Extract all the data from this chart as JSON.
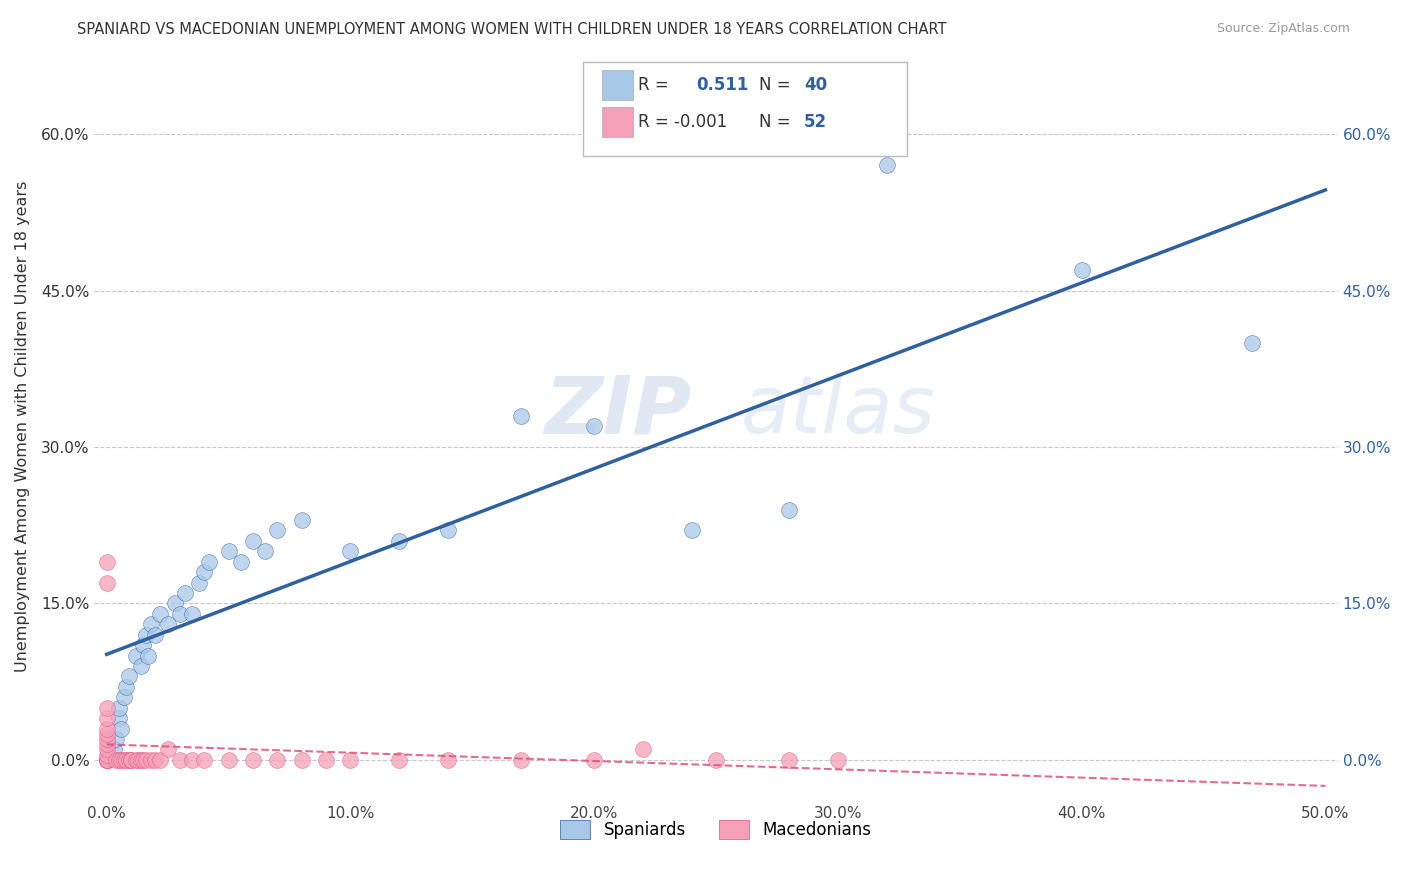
{
  "title": "SPANIARD VS MACEDONIAN UNEMPLOYMENT AMONG WOMEN WITH CHILDREN UNDER 18 YEARS CORRELATION CHART",
  "source": "Source: ZipAtlas.com",
  "ylabel": "Unemployment Among Women with Children Under 18 years",
  "xlim": [
    -0.005,
    0.505
  ],
  "ylim": [
    -0.04,
    0.68
  ],
  "xticks": [
    0.0,
    0.1,
    0.2,
    0.3,
    0.4,
    0.5
  ],
  "xticklabels": [
    "0.0%",
    "10.0%",
    "20.0%",
    "30.0%",
    "40.0%",
    "50.0%"
  ],
  "yticks": [
    0.0,
    0.15,
    0.3,
    0.45,
    0.6
  ],
  "yticklabels": [
    "0.0%",
    "15.0%",
    "30.0%",
    "45.0%",
    "60.0%"
  ],
  "grid_color": "#c8c8c8",
  "background_color": "#ffffff",
  "watermark_text": "ZIPatlas",
  "legend_label1": "Spaniards",
  "legend_label2": "Macedonians",
  "blue_color": "#a8c8e8",
  "pink_color": "#f4a0b8",
  "blue_line_color": "#3060a0",
  "pink_line_color": "#e05080",
  "tick_color_right": "#3060a0",
  "tick_color_left": "#333333",
  "spaniards_x": [
    0.003,
    0.004,
    0.005,
    0.005,
    0.006,
    0.007,
    0.008,
    0.009,
    0.012,
    0.014,
    0.015,
    0.016,
    0.017,
    0.018,
    0.02,
    0.022,
    0.025,
    0.028,
    0.03,
    0.032,
    0.035,
    0.038,
    0.04,
    0.042,
    0.05,
    0.055,
    0.06,
    0.065,
    0.07,
    0.08,
    0.1,
    0.12,
    0.14,
    0.17,
    0.2,
    0.24,
    0.28,
    0.32,
    0.4,
    0.47
  ],
  "spaniards_y": [
    0.01,
    0.02,
    0.04,
    0.05,
    0.03,
    0.06,
    0.07,
    0.08,
    0.1,
    0.09,
    0.11,
    0.12,
    0.1,
    0.13,
    0.12,
    0.14,
    0.13,
    0.15,
    0.14,
    0.16,
    0.14,
    0.17,
    0.18,
    0.19,
    0.2,
    0.19,
    0.21,
    0.2,
    0.22,
    0.23,
    0.2,
    0.21,
    0.22,
    0.33,
    0.32,
    0.22,
    0.24,
    0.57,
    0.47,
    0.4
  ],
  "macedonians_x": [
    0.0,
    0.0,
    0.0,
    0.0,
    0.0,
    0.0,
    0.0,
    0.0,
    0.0,
    0.0,
    0.0,
    0.0,
    0.0,
    0.0,
    0.0,
    0.0,
    0.0,
    0.0,
    0.004,
    0.005,
    0.006,
    0.007,
    0.008,
    0.009,
    0.01,
    0.01,
    0.012,
    0.013,
    0.014,
    0.015,
    0.016,
    0.018,
    0.02,
    0.022,
    0.025,
    0.03,
    0.035,
    0.04,
    0.05,
    0.06,
    0.07,
    0.08,
    0.09,
    0.1,
    0.12,
    0.14,
    0.17,
    0.2,
    0.25,
    0.3,
    0.22,
    0.28
  ],
  "macedonians_y": [
    0.0,
    0.0,
    0.0,
    0.0,
    0.0,
    0.0,
    0.0,
    0.0,
    0.005,
    0.01,
    0.015,
    0.02,
    0.025,
    0.03,
    0.04,
    0.05,
    0.17,
    0.19,
    0.0,
    0.0,
    0.0,
    0.0,
    0.0,
    0.0,
    0.0,
    0.0,
    0.0,
    0.0,
    0.0,
    0.0,
    0.0,
    0.0,
    0.0,
    0.0,
    0.01,
    0.0,
    0.0,
    0.0,
    0.0,
    0.0,
    0.0,
    0.0,
    0.0,
    0.0,
    0.0,
    0.0,
    0.0,
    0.0,
    0.0,
    0.0,
    0.01,
    0.0
  ]
}
